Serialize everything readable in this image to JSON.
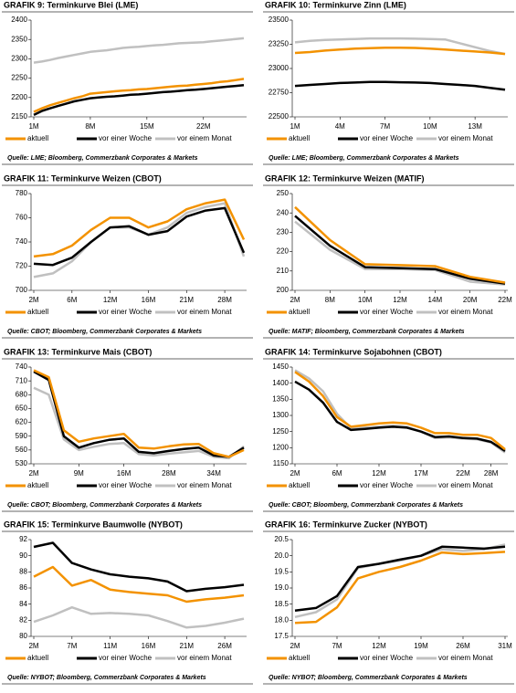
{
  "chart_data": [
    {
      "type": "line",
      "title": "GRAFIK 9: Terminkurve Blei (LME)",
      "source": "Quelle: LME; Bloomberg, Commerzbank Corporates & Markets",
      "categories": [
        "1M",
        null,
        null,
        null,
        null,
        null,
        null,
        "8M",
        null,
        null,
        null,
        null,
        null,
        null,
        "15M",
        null,
        null,
        null,
        null,
        null,
        null,
        "22M",
        null,
        null,
        null,
        null,
        null
      ],
      "series": [
        {
          "name": "aktuell",
          "color": "#f39200",
          "values": [
            2163,
            2172,
            2180,
            2186,
            2192,
            2198,
            2203,
            2210,
            2212,
            2214,
            2216,
            2218,
            2219,
            2221,
            2222,
            2224,
            2226,
            2228,
            2230,
            2231,
            2233,
            2235,
            2237,
            2240,
            2242,
            2245,
            2248
          ]
        },
        {
          "name": "vor einer Woche",
          "color": "#000000",
          "values": [
            2155,
            2165,
            2172,
            2178,
            2184,
            2190,
            2194,
            2198,
            2200,
            2202,
            2203,
            2205,
            2207,
            2208,
            2210,
            2212,
            2214,
            2215,
            2217,
            2219,
            2220,
            2222,
            2224,
            2226,
            2228,
            2230,
            2232
          ]
        },
        {
          "name": "vor einem Monat",
          "color": "#c0c0c0",
          "values": [
            2290,
            2293,
            2297,
            2302,
            2306,
            2310,
            2314,
            2318,
            2320,
            2322,
            2325,
            2328,
            2330,
            2331,
            2333,
            2335,
            2336,
            2338,
            2340,
            2341,
            2342,
            2343,
            2345,
            2347,
            2349,
            2351,
            2353
          ]
        }
      ],
      "ylim": [
        2150,
        2400
      ],
      "yticks": [
        2150,
        2200,
        2250,
        2300,
        2350,
        2400
      ]
    },
    {
      "type": "line",
      "title": "GRAFIK 10: Terminkurve Zinn (LME)",
      "source": "Quelle: LME; Bloomberg, Commerzbank Corporates & Markets",
      "categories": [
        "1M",
        null,
        null,
        "4M",
        null,
        null,
        "7M",
        null,
        null,
        "10M",
        null,
        null,
        "13M",
        null,
        null
      ],
      "series": [
        {
          "name": "aktuell",
          "color": "#f39200",
          "values": [
            23160,
            23170,
            23185,
            23195,
            23205,
            23210,
            23215,
            23215,
            23212,
            23205,
            23195,
            23185,
            23175,
            23165,
            23150
          ]
        },
        {
          "name": "vor einer Woche",
          "color": "#000000",
          "values": [
            22820,
            22830,
            22840,
            22850,
            22855,
            22860,
            22860,
            22858,
            22855,
            22850,
            22840,
            22830,
            22820,
            22800,
            22780
          ]
        },
        {
          "name": "vor einem Monat",
          "color": "#c0c0c0",
          "values": [
            23270,
            23285,
            23295,
            23300,
            23305,
            23310,
            23310,
            23310,
            23308,
            23305,
            23300,
            23260,
            23220,
            23180,
            23150
          ]
        }
      ],
      "ylim": [
        22500,
        23500
      ],
      "yticks": [
        22500,
        22750,
        23000,
        23250,
        23500
      ]
    },
    {
      "type": "line",
      "title": "GRAFIK 11: Terminkurve Weizen (CBOT)",
      "source": "Quelle: CBOT; Bloomberg, Commerzbank Corporates & Markets",
      "categories": [
        "2M",
        null,
        "6M",
        null,
        "12M",
        null,
        "16M",
        null,
        "21M",
        null,
        "28M",
        null
      ],
      "series": [
        {
          "name": "aktuell",
          "color": "#f39200",
          "values": [
            728,
            730,
            737,
            750,
            760,
            760,
            752,
            757,
            767,
            772,
            775,
            742
          ]
        },
        {
          "name": "vor einer Woche",
          "color": "#000000",
          "values": [
            722,
            721,
            727,
            740,
            752,
            753,
            746,
            749,
            761,
            766,
            768,
            731
          ]
        },
        {
          "name": "vor einem Monat",
          "color": "#c0c0c0",
          "values": [
            711,
            714,
            724,
            740,
            752,
            752,
            746,
            752,
            764,
            769,
            772,
            728
          ]
        }
      ],
      "ylim": [
        700,
        780
      ],
      "yticks": [
        700,
        720,
        740,
        760,
        780
      ]
    },
    {
      "type": "line",
      "title": "GRAFIK 12: Terminkurve Weizen (MATIF)",
      "source": "Quelle: MATIF; Bloomberg, Commerzbank Corporates & Markets",
      "categories": [
        "2M",
        "8M",
        "10M",
        "12M",
        "14M",
        "20M",
        "22M"
      ],
      "series": [
        {
          "name": "aktuell",
          "color": "#f39200",
          "values": [
            243,
            226,
            213.5,
            213,
            212.5,
            207,
            204
          ]
        },
        {
          "name": "vor einer Woche",
          "color": "#000000",
          "values": [
            238.5,
            223,
            212,
            211.5,
            211,
            206,
            203.5
          ]
        },
        {
          "name": "vor einem Monat",
          "color": "#c0c0c0",
          "values": [
            235.5,
            221,
            211,
            211,
            210.5,
            204.5,
            203
          ]
        }
      ],
      "ylim": [
        200,
        250
      ],
      "yticks": [
        200,
        210,
        220,
        230,
        240,
        250
      ]
    },
    {
      "type": "line",
      "title": "GRAFIK 13:  Terminkurve Mais (CBOT)",
      "source": "Quelle: CBOT; Bloomberg, Commerzbank Corporates & Markets",
      "categories": [
        "2M",
        null,
        null,
        "9M",
        null,
        null,
        "16M",
        null,
        null,
        "28M",
        null,
        null,
        "34M",
        null,
        null
      ],
      "series": [
        {
          "name": "aktuell",
          "color": "#f39200",
          "values": [
            733,
            718,
            603,
            578,
            585,
            590,
            595,
            565,
            563,
            568,
            572,
            573,
            553,
            545,
            560
          ]
        },
        {
          "name": "vor einer Woche",
          "color": "#000000",
          "values": [
            730,
            712,
            590,
            565,
            575,
            582,
            585,
            556,
            553,
            558,
            562,
            565,
            548,
            545,
            565
          ]
        },
        {
          "name": "vor einem Monat",
          "color": "#c0c0c0",
          "values": [
            695,
            680,
            583,
            560,
            567,
            573,
            575,
            551,
            548,
            552,
            555,
            558,
            545,
            542,
            568
          ]
        }
      ],
      "ylim": [
        530,
        740
      ],
      "yticks": [
        530,
        560,
        590,
        620,
        650,
        680,
        710,
        740
      ]
    },
    {
      "type": "line",
      "title": "GRAFIK 14: Terminkurve Sojabohnen (CBOT)",
      "source": "Quelle: CBOT; Bloomberg, Commerzbank Corporates & Markets",
      "categories": [
        "2M",
        null,
        null,
        "6M",
        null,
        null,
        "12M",
        null,
        null,
        "17M",
        null,
        null,
        "22M",
        null,
        "28M",
        null
      ],
      "series": [
        {
          "name": "aktuell",
          "color": "#f39200",
          "values": [
            1435,
            1405,
            1360,
            1295,
            1265,
            1270,
            1275,
            1278,
            1275,
            1262,
            1245,
            1245,
            1240,
            1240,
            1230,
            1195
          ]
        },
        {
          "name": "vor einer Woche",
          "color": "#000000",
          "values": [
            1405,
            1380,
            1340,
            1280,
            1255,
            1258,
            1262,
            1265,
            1262,
            1250,
            1233,
            1235,
            1230,
            1228,
            1218,
            1190
          ]
        },
        {
          "name": "vor einem Monat",
          "color": "#c0c0c0",
          "values": [
            1440,
            1415,
            1375,
            1305,
            1260,
            1262,
            1265,
            1268,
            1265,
            1250,
            1230,
            1232,
            1228,
            1226,
            1216,
            1185
          ]
        }
      ],
      "ylim": [
        1150,
        1450
      ],
      "yticks": [
        1150,
        1200,
        1250,
        1300,
        1350,
        1400,
        1450
      ]
    },
    {
      "type": "line",
      "title": "GRAFIK 15: Terminkurve Baumwolle (NYBOT)",
      "source": "Quelle: NYBOT; Bloomberg, Commerzbank Corporates & Markets",
      "categories": [
        "2M",
        null,
        "7M",
        null,
        "11M",
        null,
        "16M",
        null,
        "21M",
        null,
        "26M",
        null
      ],
      "series": [
        {
          "name": "aktuell",
          "color": "#f39200",
          "values": [
            87.4,
            88.6,
            86.3,
            87.0,
            85.8,
            85.5,
            85.3,
            85.1,
            84.3,
            84.6,
            84.8,
            85.1
          ]
        },
        {
          "name": "vor einer Woche",
          "color": "#000000",
          "values": [
            91.1,
            91.6,
            89.1,
            88.3,
            87.7,
            87.4,
            87.2,
            86.8,
            85.6,
            85.9,
            86.1,
            86.4
          ]
        },
        {
          "name": "vor einem Monat",
          "color": "#c0c0c0",
          "values": [
            81.8,
            82.6,
            83.6,
            82.8,
            82.9,
            82.8,
            82.6,
            81.9,
            81.1,
            81.3,
            81.7,
            82.2
          ]
        }
      ],
      "ylim": [
        80,
        92
      ],
      "yticks": [
        80,
        82,
        84,
        86,
        88,
        90,
        92
      ]
    },
    {
      "type": "line",
      "title": "GRAFIK 16: Terminkurve Zucker (NYBOT)",
      "source": "Quelle: NYBOT; Bloomberg, Commerzbank Corporates & Markets",
      "categories": [
        "2M",
        null,
        "7M",
        null,
        "12M",
        null,
        "19M",
        null,
        "26M",
        null,
        "31M"
      ],
      "series": [
        {
          "name": "aktuell",
          "color": "#f39200",
          "values": [
            17.92,
            17.95,
            18.4,
            19.3,
            19.5,
            19.65,
            19.85,
            20.1,
            20.05,
            20.08,
            20.12
          ]
        },
        {
          "name": "vor einer Woche",
          "color": "#000000",
          "values": [
            18.3,
            18.38,
            18.75,
            19.65,
            19.75,
            19.88,
            20.0,
            20.28,
            20.25,
            20.22,
            20.28
          ]
        },
        {
          "name": "vor einem Monat",
          "color": "#c0c0c0",
          "values": [
            18.1,
            18.25,
            18.65,
            19.62,
            19.75,
            19.85,
            20.0,
            20.2,
            20.15,
            20.2,
            20.35
          ]
        }
      ],
      "ylim": [
        17.5,
        20.5
      ],
      "yticks": [
        17.5,
        {
          "value": 18,
          "label": "18.0"
        },
        18.5,
        {
          "value": 19,
          "label": "19.0"
        },
        19.5,
        {
          "value": 20,
          "label": "20.0"
        },
        20.5
      ]
    }
  ]
}
